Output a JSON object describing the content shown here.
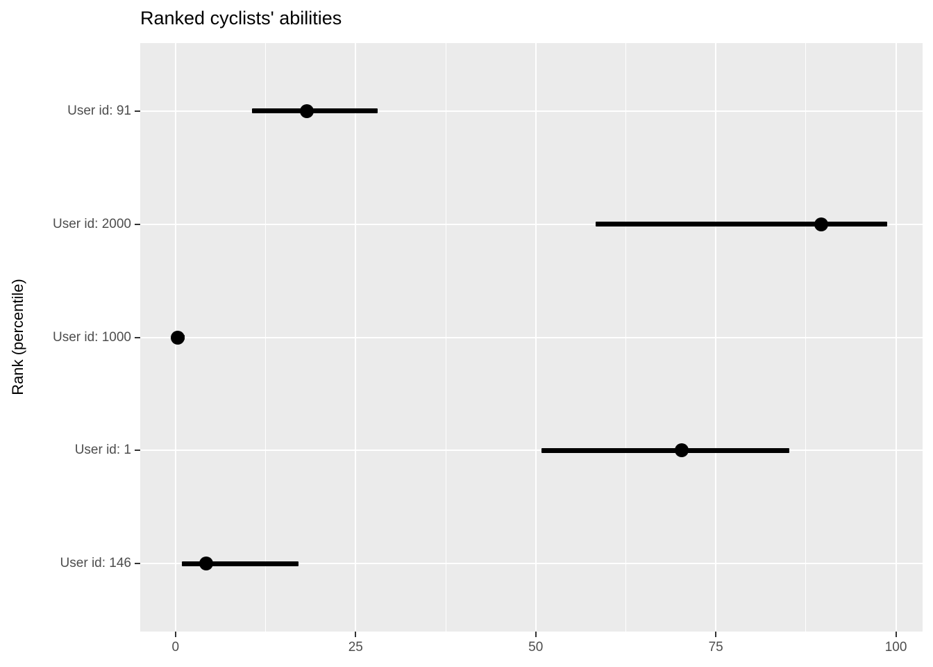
{
  "chart_data": {
    "type": "scatter",
    "variant": "pointrange-horizontal",
    "title": "Ranked cyclists' abilities",
    "xlabel": "",
    "ylabel": "Rank (percentile)",
    "x_ticks": [
      0,
      25,
      50,
      75,
      100
    ],
    "x_minor_gridlines": [
      12.5,
      37.5,
      62.5,
      87.5
    ],
    "x_domain": [
      -4.9,
      103.7
    ],
    "grid": true,
    "legend": "none",
    "categories": [
      "User id: 91",
      "User id: 2000",
      "User id: 1000",
      "User id: 1",
      "User id: 146"
    ],
    "series": [
      {
        "name": "rank_percentile_intervals",
        "points": [
          {
            "category": "User id: 91",
            "estimate": 18.2,
            "lower": 10.6,
            "upper": 28.1
          },
          {
            "category": "User id: 2000",
            "estimate": 89.6,
            "lower": 58.3,
            "upper": 98.8
          },
          {
            "category": "User id: 1000",
            "estimate": 0.3,
            "lower": 0.0,
            "upper": 1.3
          },
          {
            "category": "User id: 1",
            "estimate": 70.3,
            "lower": 50.8,
            "upper": 85.2
          },
          {
            "category": "User id: 146",
            "estimate": 4.3,
            "lower": 0.9,
            "upper": 17.1
          }
        ]
      }
    ],
    "colors": {
      "background": "#FFFFFF",
      "panel_background": "#EBEBEB",
      "gridline": "#FFFFFF",
      "point": "#000000",
      "tick_label": "#4D4D4D",
      "axis_title": "#000000",
      "tick_mark": "#333333"
    }
  }
}
